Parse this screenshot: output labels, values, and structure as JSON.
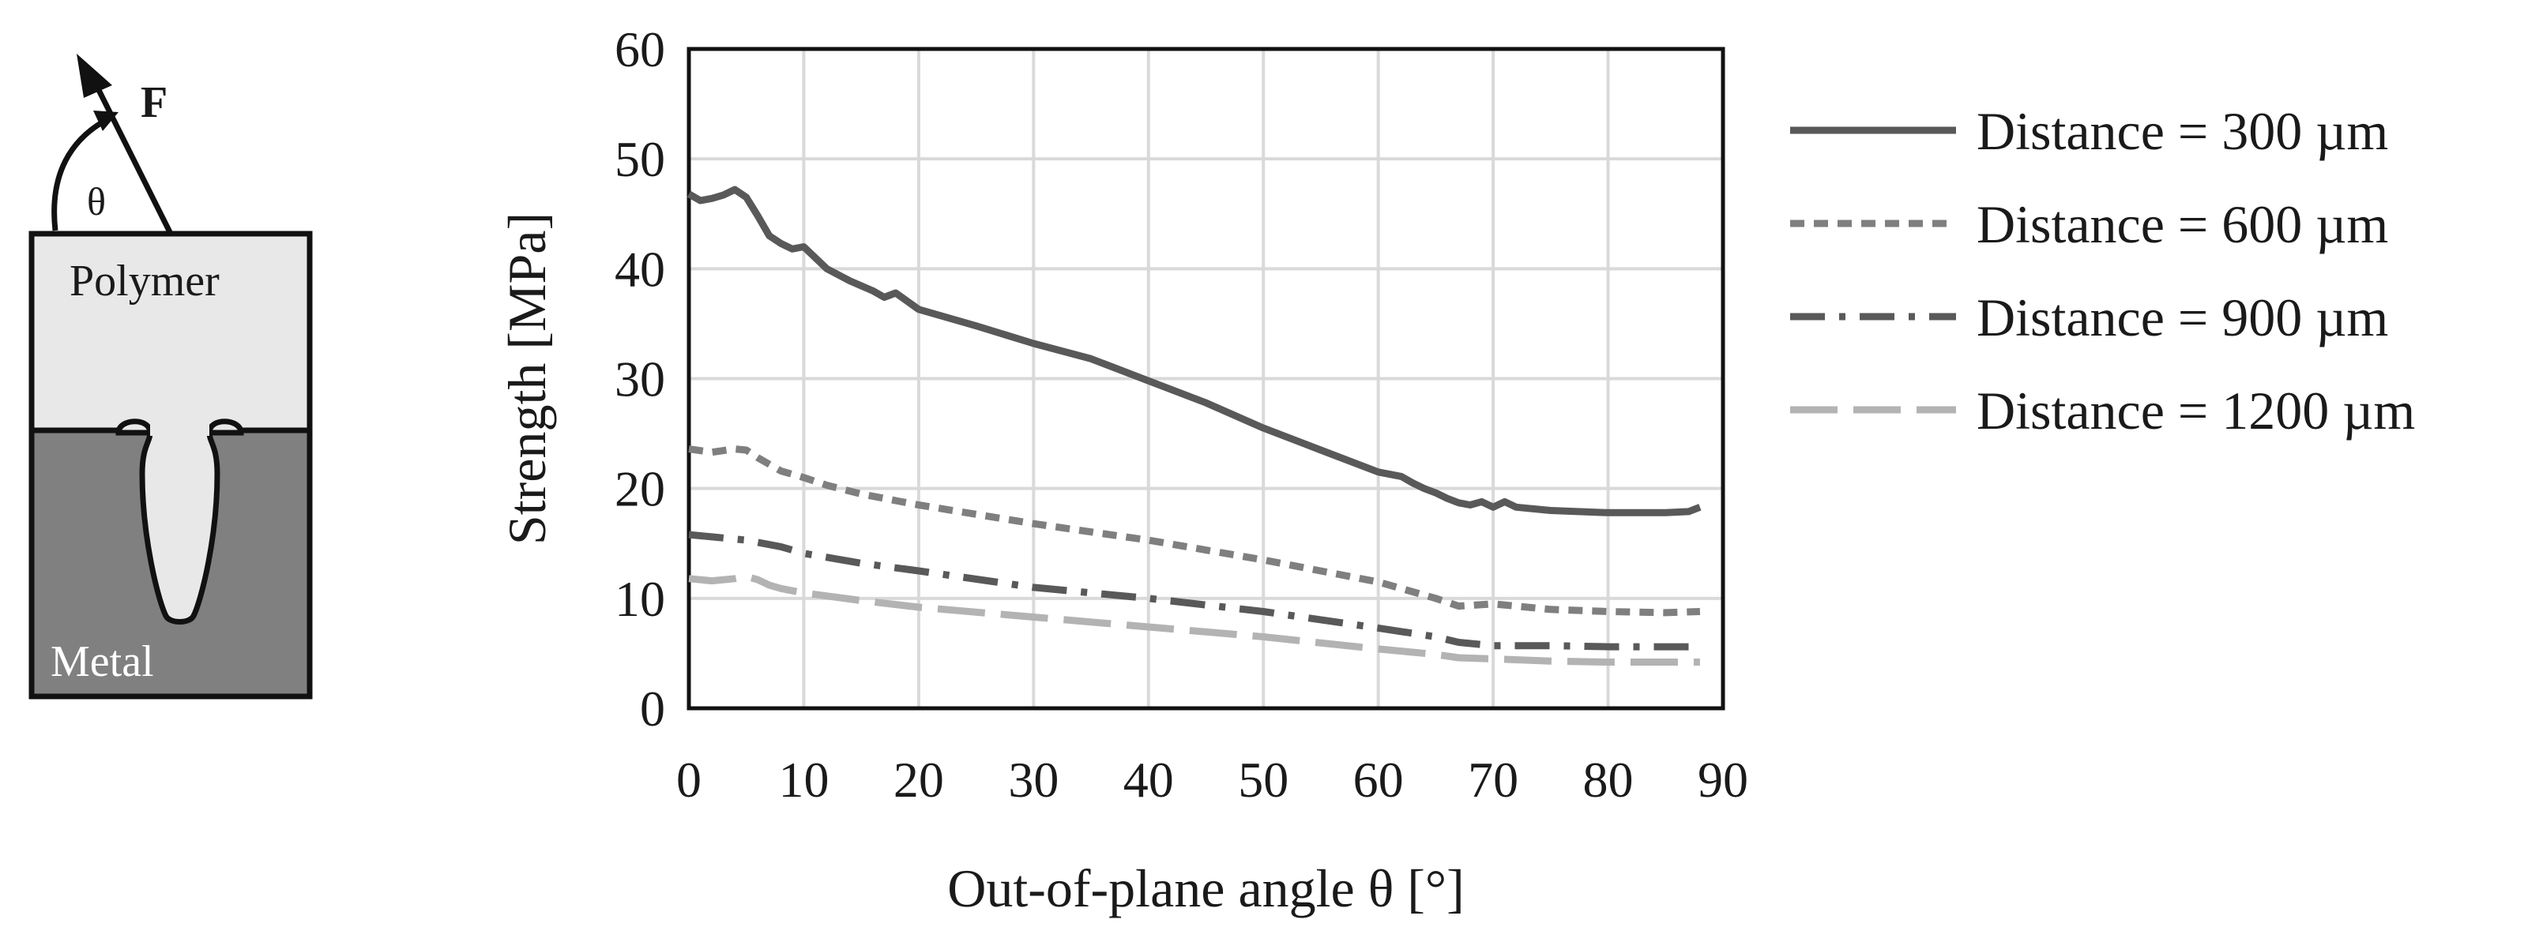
{
  "schematic": {
    "force_label": "F",
    "angle_label": "θ",
    "polymer_label": "Polymer",
    "metal_label": "Metal"
  },
  "chart_data": {
    "type": "line",
    "title": "",
    "xlabel": "Out-of-plane angle θ [°]",
    "ylabel": "Strength [MPa]",
    "xlim": [
      0,
      90
    ],
    "ylim": [
      0,
      60
    ],
    "xticks": [
      0,
      10,
      20,
      30,
      40,
      50,
      60,
      70,
      80,
      90
    ],
    "yticks": [
      0,
      10,
      20,
      30,
      40,
      50,
      60
    ],
    "grid": true,
    "legend_position": "right",
    "series": [
      {
        "name": "Distance = 300 µm",
        "color": "#595959",
        "style": "solid",
        "x": [
          0,
          1,
          2,
          3,
          4,
          5,
          6,
          7,
          8,
          9,
          10,
          12,
          14,
          16,
          17,
          18,
          20,
          25,
          30,
          35,
          40,
          45,
          50,
          55,
          60,
          62,
          63,
          64,
          65,
          66,
          67,
          68,
          69,
          70,
          71,
          72,
          75,
          80,
          85,
          87,
          88
        ],
        "y": [
          46.8,
          46.2,
          46.4,
          46.7,
          47.2,
          46.5,
          44.8,
          43.0,
          42.3,
          41.8,
          42.0,
          40.0,
          38.9,
          38.0,
          37.4,
          37.8,
          36.3,
          34.8,
          33.2,
          31.8,
          29.8,
          27.8,
          25.5,
          23.5,
          21.5,
          21.1,
          20.5,
          20.0,
          19.6,
          19.1,
          18.7,
          18.5,
          18.8,
          18.3,
          18.8,
          18.3,
          18.0,
          17.8,
          17.8,
          17.9,
          18.3
        ]
      },
      {
        "name": "Distance = 600 µm",
        "color": "#7f7f7f",
        "style": "short-dash",
        "x": [
          0,
          2,
          4,
          5,
          6,
          7,
          8,
          10,
          12,
          15,
          18,
          20,
          30,
          40,
          50,
          60,
          65,
          67,
          70,
          75,
          80,
          85,
          88
        ],
        "y": [
          23.6,
          23.3,
          23.6,
          23.5,
          22.8,
          22.2,
          21.6,
          21.0,
          20.3,
          19.5,
          18.9,
          18.5,
          16.8,
          15.3,
          13.5,
          11.5,
          10.0,
          9.3,
          9.5,
          9.0,
          8.8,
          8.7,
          8.8
        ]
      },
      {
        "name": "Distance = 900 µm",
        "color": "#595959",
        "style": "dash-dot",
        "x": [
          0,
          2,
          4,
          5,
          8,
          10,
          15,
          20,
          30,
          40,
          50,
          60,
          65,
          67,
          70,
          75,
          80,
          88
        ],
        "y": [
          15.8,
          15.6,
          15.4,
          15.3,
          14.7,
          14.1,
          13.2,
          12.5,
          11.0,
          10.0,
          8.8,
          7.3,
          6.5,
          6.0,
          5.7,
          5.7,
          5.6,
          5.6
        ]
      },
      {
        "name": "Distance = 1200 µm",
        "color": "#b3b3b3",
        "style": "long-dash",
        "x": [
          0,
          2,
          4,
          5,
          6,
          7,
          8,
          10,
          15,
          20,
          30,
          40,
          50,
          60,
          65,
          67,
          70,
          75,
          80,
          88
        ],
        "y": [
          11.8,
          11.6,
          11.8,
          12.0,
          11.7,
          11.2,
          10.9,
          10.5,
          9.8,
          9.2,
          8.3,
          7.4,
          6.5,
          5.4,
          4.9,
          4.6,
          4.5,
          4.3,
          4.2,
          4.2
        ]
      }
    ]
  }
}
